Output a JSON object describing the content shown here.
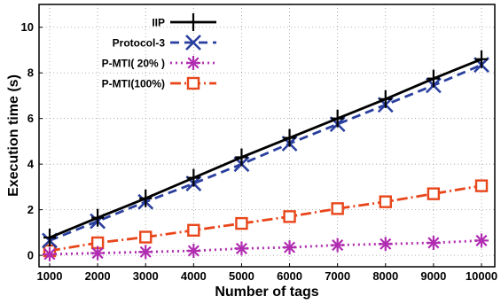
{
  "chart_data": {
    "type": "line",
    "xlabel": "Number of tags",
    "ylabel": "Execution time (s)",
    "x": [
      1000,
      2000,
      3000,
      4000,
      5000,
      6000,
      7000,
      8000,
      9000,
      10000
    ],
    "x_ticks": [
      "1000",
      "2000",
      "3000",
      "4000",
      "5000",
      "6000",
      "7000",
      "8000",
      "9000",
      "10000"
    ],
    "y_ticks": [
      "0",
      "2",
      "4",
      "6",
      "8",
      "10"
    ],
    "xlim": [
      1000,
      10000
    ],
    "ylim": [
      -0.5,
      11
    ],
    "grid": true,
    "legend_position": "top-left",
    "series": [
      {
        "name": "IIP",
        "values": [
          0.78,
          1.65,
          2.5,
          3.4,
          4.3,
          5.15,
          6.0,
          6.85,
          7.75,
          8.6
        ],
        "color": "#000000",
        "marker": "plus",
        "line_style": "solid"
      },
      {
        "name": "Protocol-3",
        "values": [
          0.65,
          1.5,
          2.35,
          3.15,
          4.0,
          4.9,
          5.75,
          6.6,
          7.45,
          8.35
        ],
        "color": "#2a3f9e",
        "marker": "x",
        "line_style": "dashed"
      },
      {
        "name": "P-MTI( 20% )",
        "values": [
          0.05,
          0.1,
          0.15,
          0.2,
          0.3,
          0.35,
          0.45,
          0.5,
          0.55,
          0.65
        ],
        "color": "#b02cb0",
        "marker": "asterisk",
        "line_style": "dotted"
      },
      {
        "name": "P-MTI(100%)",
        "values": [
          0.2,
          0.55,
          0.8,
          1.1,
          1.4,
          1.7,
          2.05,
          2.35,
          2.7,
          3.05
        ],
        "color": "#e8461a",
        "marker": "square",
        "line_style": "dashdot"
      }
    ]
  }
}
